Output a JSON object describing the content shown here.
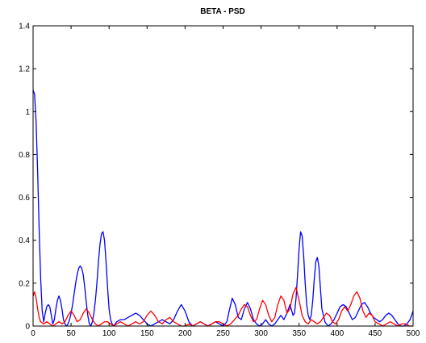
{
  "chart_data": {
    "type": "line",
    "title": "BETA - PSD",
    "xlabel": "",
    "ylabel": "",
    "xlim": [
      0,
      500
    ],
    "ylim": [
      0,
      1.4
    ],
    "xticks": [
      "0",
      "50",
      "100",
      "150",
      "200",
      "250",
      "300",
      "350",
      "400",
      "450",
      "500"
    ],
    "yticks": [
      "0",
      "0.2",
      "0.4",
      "0.6",
      "0.8",
      "1",
      "1.2",
      "1.4"
    ],
    "grid": false,
    "series": [
      {
        "color": "#0000ff",
        "x": [
          0,
          2,
          4,
          6,
          8,
          10,
          12,
          14,
          16,
          18,
          20,
          22,
          24,
          26,
          28,
          30,
          32,
          34,
          36,
          38,
          40,
          42,
          44,
          46,
          48,
          50,
          52,
          54,
          56,
          58,
          60,
          62,
          64,
          66,
          68,
          70,
          72,
          74,
          76,
          78,
          80,
          82,
          84,
          86,
          88,
          90,
          92,
          94,
          96,
          98,
          100,
          102,
          104,
          106,
          108,
          110,
          115,
          120,
          125,
          130,
          135,
          140,
          145,
          150,
          155,
          160,
          165,
          170,
          175,
          180,
          185,
          190,
          195,
          200,
          205,
          210,
          215,
          220,
          225,
          230,
          235,
          240,
          245,
          250,
          255,
          258,
          262,
          266,
          270,
          274,
          278,
          282,
          286,
          290,
          294,
          298,
          302,
          306,
          310,
          314,
          318,
          322,
          326,
          330,
          334,
          338,
          342,
          344,
          346,
          348,
          350,
          352,
          354,
          356,
          358,
          360,
          362,
          364,
          366,
          368,
          370,
          372,
          374,
          376,
          378,
          380,
          384,
          388,
          392,
          396,
          400,
          404,
          408,
          412,
          416,
          420,
          424,
          428,
          432,
          436,
          440,
          444,
          448,
          452,
          456,
          460,
          464,
          468,
          472,
          476,
          480,
          484,
          488,
          492,
          496,
          500
        ],
        "y": [
          1.1,
          1.08,
          0.95,
          0.72,
          0.45,
          0.22,
          0.07,
          0.02,
          0.06,
          0.09,
          0.1,
          0.09,
          0.05,
          0.01,
          0.03,
          0.08,
          0.12,
          0.14,
          0.12,
          0.08,
          0.03,
          0.01,
          0.0,
          0.01,
          0.03,
          0.06,
          0.1,
          0.15,
          0.2,
          0.24,
          0.27,
          0.28,
          0.27,
          0.24,
          0.18,
          0.11,
          0.05,
          0.01,
          0.0,
          0.02,
          0.06,
          0.12,
          0.2,
          0.3,
          0.38,
          0.43,
          0.44,
          0.4,
          0.3,
          0.18,
          0.08,
          0.03,
          0.01,
          0.0,
          0.01,
          0.02,
          0.03,
          0.03,
          0.04,
          0.05,
          0.06,
          0.05,
          0.03,
          0.01,
          0.0,
          0.01,
          0.02,
          0.03,
          0.02,
          0.01,
          0.03,
          0.07,
          0.1,
          0.07,
          0.02,
          0.0,
          0.01,
          0.02,
          0.01,
          0.0,
          0.01,
          0.02,
          0.01,
          0.0,
          0.02,
          0.07,
          0.13,
          0.1,
          0.04,
          0.03,
          0.08,
          0.11,
          0.08,
          0.03,
          0.01,
          0.0,
          0.01,
          0.03,
          0.01,
          0.0,
          0.01,
          0.03,
          0.05,
          0.03,
          0.06,
          0.1,
          0.05,
          0.06,
          0.13,
          0.24,
          0.36,
          0.44,
          0.42,
          0.33,
          0.2,
          0.1,
          0.05,
          0.03,
          0.05,
          0.12,
          0.22,
          0.3,
          0.32,
          0.28,
          0.18,
          0.08,
          0.02,
          0.0,
          0.01,
          0.03,
          0.06,
          0.09,
          0.1,
          0.09,
          0.06,
          0.03,
          0.04,
          0.07,
          0.1,
          0.11,
          0.09,
          0.06,
          0.04,
          0.03,
          0.02,
          0.03,
          0.05,
          0.06,
          0.05,
          0.03,
          0.01,
          0.0,
          0.0,
          0.01,
          0.03,
          0.07
        ]
      },
      {
        "color": "#ff0000",
        "x": [
          0,
          2,
          4,
          6,
          8,
          10,
          14,
          18,
          22,
          26,
          30,
          34,
          38,
          42,
          46,
          50,
          54,
          58,
          62,
          66,
          70,
          74,
          78,
          82,
          86,
          90,
          94,
          98,
          102,
          106,
          110,
          115,
          120,
          125,
          130,
          135,
          140,
          145,
          150,
          155,
          160,
          165,
          170,
          175,
          180,
          185,
          190,
          195,
          200,
          205,
          210,
          215,
          220,
          225,
          230,
          235,
          240,
          245,
          250,
          255,
          260,
          265,
          270,
          274,
          278,
          282,
          286,
          290,
          294,
          298,
          302,
          306,
          310,
          314,
          318,
          322,
          326,
          330,
          334,
          338,
          342,
          346,
          350,
          354,
          358,
          362,
          366,
          370,
          374,
          378,
          382,
          386,
          390,
          394,
          398,
          402,
          406,
          410,
          414,
          418,
          422,
          426,
          430,
          434,
          438,
          442,
          446,
          450,
          455,
          460,
          465,
          470,
          475,
          480,
          485,
          490,
          495,
          500
        ],
        "y": [
          0.14,
          0.16,
          0.13,
          0.08,
          0.04,
          0.02,
          0.01,
          0.02,
          0.01,
          0.0,
          0.01,
          0.02,
          0.01,
          0.02,
          0.05,
          0.07,
          0.05,
          0.02,
          0.03,
          0.06,
          0.08,
          0.06,
          0.03,
          0.01,
          0.0,
          0.01,
          0.02,
          0.02,
          0.01,
          0.0,
          0.01,
          0.02,
          0.01,
          0.0,
          0.01,
          0.02,
          0.01,
          0.02,
          0.05,
          0.07,
          0.05,
          0.02,
          0.01,
          0.03,
          0.04,
          0.02,
          0.01,
          0.0,
          0.0,
          0.01,
          0.0,
          0.01,
          0.02,
          0.01,
          0.0,
          0.01,
          0.02,
          0.02,
          0.01,
          0.0,
          0.01,
          0.03,
          0.05,
          0.08,
          0.1,
          0.09,
          0.05,
          0.02,
          0.03,
          0.08,
          0.12,
          0.1,
          0.05,
          0.02,
          0.04,
          0.1,
          0.14,
          0.12,
          0.06,
          0.08,
          0.15,
          0.18,
          0.12,
          0.05,
          0.02,
          0.01,
          0.03,
          0.02,
          0.01,
          0.02,
          0.04,
          0.06,
          0.05,
          0.02,
          0.01,
          0.03,
          0.07,
          0.09,
          0.07,
          0.1,
          0.14,
          0.16,
          0.13,
          0.07,
          0.04,
          0.06,
          0.05,
          0.02,
          0.01,
          0.0,
          0.01,
          0.02,
          0.01,
          0.0,
          0.01,
          0.01,
          0.0,
          0.0
        ]
      }
    ]
  }
}
